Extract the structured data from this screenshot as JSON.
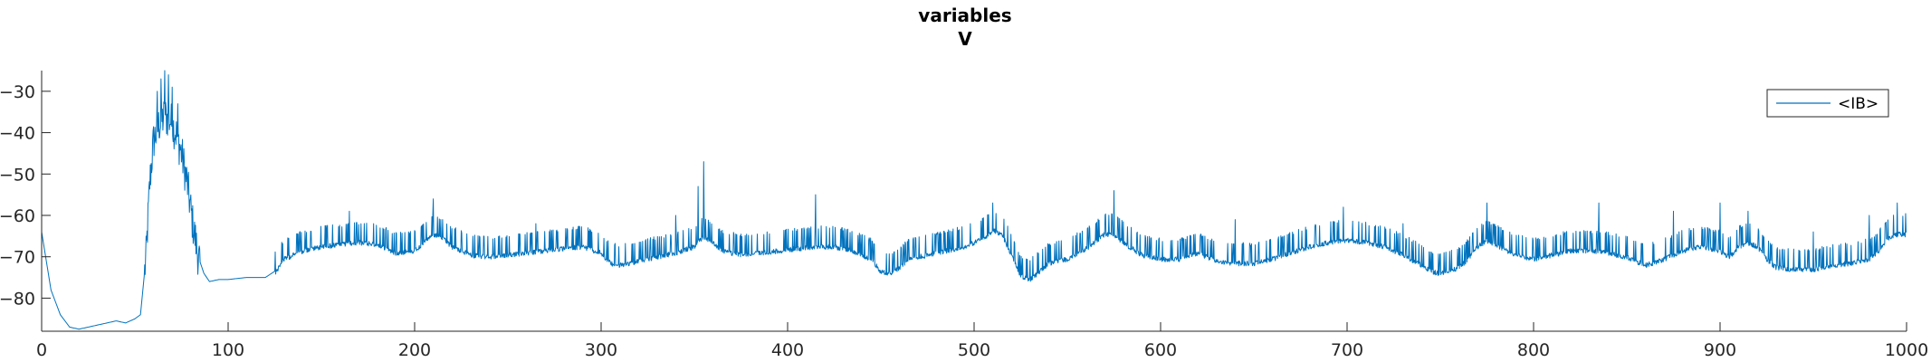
{
  "chart_data": {
    "type": "line",
    "title": "variables",
    "subtitle": "V",
    "xlabel": "",
    "ylabel": "",
    "xlim": [
      0,
      1000
    ],
    "ylim": [
      -88,
      -25
    ],
    "x_ticks": [
      0,
      100,
      200,
      300,
      400,
      500,
      600,
      700,
      800,
      900,
      1000
    ],
    "y_ticks": [
      -80,
      -70,
      -60,
      -50,
      -40,
      -30
    ],
    "grid": false,
    "legend": {
      "position": "top-right",
      "entries": [
        "<IB>"
      ]
    },
    "series": [
      {
        "name": "<IB>",
        "color": "#0072BD",
        "baseline": [
          [
            0,
            -64
          ],
          [
            5,
            -78
          ],
          [
            10,
            -84
          ],
          [
            15,
            -87
          ],
          [
            20,
            -87.5
          ],
          [
            25,
            -87
          ],
          [
            30,
            -86.5
          ],
          [
            35,
            -86
          ],
          [
            40,
            -85.5
          ],
          [
            45,
            -86
          ],
          [
            50,
            -85
          ],
          [
            53,
            -84
          ],
          [
            56,
            -70
          ],
          [
            58,
            -52
          ],
          [
            60,
            -42
          ],
          [
            63,
            -38
          ],
          [
            66,
            -36
          ],
          [
            69,
            -37
          ],
          [
            72,
            -40
          ],
          [
            75,
            -45
          ],
          [
            78,
            -52
          ],
          [
            81,
            -62
          ],
          [
            84,
            -70
          ],
          [
            87,
            -74
          ],
          [
            90,
            -76
          ],
          [
            95,
            -75.5
          ],
          [
            100,
            -75.5
          ],
          [
            110,
            -75
          ],
          [
            120,
            -75
          ],
          [
            125,
            -73.5
          ],
          [
            130,
            -70
          ],
          [
            140,
            -68
          ],
          [
            150,
            -67
          ],
          [
            160,
            -66.5
          ],
          [
            170,
            -66
          ],
          [
            180,
            -66.5
          ],
          [
            190,
            -68.5
          ],
          [
            200,
            -68
          ],
          [
            205,
            -66
          ],
          [
            210,
            -64
          ],
          [
            215,
            -65
          ],
          [
            220,
            -67
          ],
          [
            230,
            -69
          ],
          [
            240,
            -69.5
          ],
          [
            250,
            -69
          ],
          [
            260,
            -68.5
          ],
          [
            270,
            -68
          ],
          [
            280,
            -67.5
          ],
          [
            290,
            -67
          ],
          [
            300,
            -68.5
          ],
          [
            305,
            -71
          ],
          [
            310,
            -71.5
          ],
          [
            320,
            -70.5
          ],
          [
            330,
            -69.5
          ],
          [
            340,
            -68.5
          ],
          [
            350,
            -67
          ],
          [
            355,
            -64.5
          ],
          [
            360,
            -66
          ],
          [
            365,
            -68
          ],
          [
            375,
            -69
          ],
          [
            385,
            -68.5
          ],
          [
            395,
            -68
          ],
          [
            405,
            -67.5
          ],
          [
            415,
            -67
          ],
          [
            425,
            -67
          ],
          [
            435,
            -68
          ],
          [
            445,
            -70
          ],
          [
            450,
            -73
          ],
          [
            455,
            -73.5
          ],
          [
            460,
            -72
          ],
          [
            465,
            -70
          ],
          [
            475,
            -69
          ],
          [
            485,
            -68
          ],
          [
            495,
            -67
          ],
          [
            505,
            -65
          ],
          [
            510,
            -63
          ],
          [
            515,
            -64
          ],
          [
            520,
            -69
          ],
          [
            525,
            -74
          ],
          [
            530,
            -75
          ],
          [
            535,
            -73
          ],
          [
            540,
            -71
          ],
          [
            550,
            -70
          ],
          [
            560,
            -67.5
          ],
          [
            570,
            -64
          ],
          [
            575,
            -64
          ],
          [
            580,
            -66
          ],
          [
            590,
            -69
          ],
          [
            600,
            -70
          ],
          [
            610,
            -70
          ],
          [
            620,
            -68.5
          ],
          [
            630,
            -70.5
          ],
          [
            640,
            -71
          ],
          [
            650,
            -71
          ],
          [
            660,
            -70
          ],
          [
            670,
            -68.5
          ],
          [
            680,
            -67
          ],
          [
            690,
            -66
          ],
          [
            700,
            -65.5
          ],
          [
            710,
            -66
          ],
          [
            720,
            -67
          ],
          [
            730,
            -69
          ],
          [
            740,
            -71.5
          ],
          [
            745,
            -73
          ],
          [
            750,
            -73.5
          ],
          [
            760,
            -72
          ],
          [
            765,
            -70
          ],
          [
            770,
            -67
          ],
          [
            775,
            -65.5
          ],
          [
            780,
            -66.5
          ],
          [
            790,
            -69
          ],
          [
            800,
            -70
          ],
          [
            810,
            -69
          ],
          [
            820,
            -68
          ],
          [
            830,
            -68
          ],
          [
            840,
            -68.5
          ],
          [
            850,
            -69.5
          ],
          [
            860,
            -71.5
          ],
          [
            870,
            -70
          ],
          [
            880,
            -68
          ],
          [
            890,
            -67
          ],
          [
            900,
            -68
          ],
          [
            905,
            -69.5
          ],
          [
            910,
            -67
          ],
          [
            915,
            -66
          ],
          [
            920,
            -67
          ],
          [
            925,
            -70
          ],
          [
            930,
            -72
          ],
          [
            940,
            -72.5
          ],
          [
            950,
            -72.5
          ],
          [
            960,
            -71.5
          ],
          [
            970,
            -71
          ],
          [
            980,
            -70
          ],
          [
            985,
            -68
          ],
          [
            990,
            -65
          ],
          [
            995,
            -64
          ],
          [
            1000,
            -64
          ]
        ],
        "spikes": [
          [
            62,
            -30
          ],
          [
            64,
            -27
          ],
          [
            66,
            -25
          ],
          [
            68,
            -26
          ],
          [
            70,
            -29
          ],
          [
            73,
            -33
          ],
          [
            355,
            -47
          ],
          [
            352,
            -53
          ],
          [
            210,
            -56
          ],
          [
            575,
            -54
          ],
          [
            415,
            -55
          ],
          [
            510,
            -57
          ],
          [
            698,
            -58
          ],
          [
            775,
            -57
          ],
          [
            835,
            -57
          ],
          [
            875,
            -59
          ],
          [
            900,
            -57
          ],
          [
            915,
            -59
          ],
          [
            995,
            -57
          ],
          [
            165,
            -59
          ],
          [
            265,
            -62
          ],
          [
            340,
            -60
          ],
          [
            640,
            -61
          ],
          [
            730,
            -62
          ],
          [
            950,
            -64
          ],
          [
            980,
            -60
          ]
        ],
        "noise_amplitude": 4.5
      }
    ]
  }
}
